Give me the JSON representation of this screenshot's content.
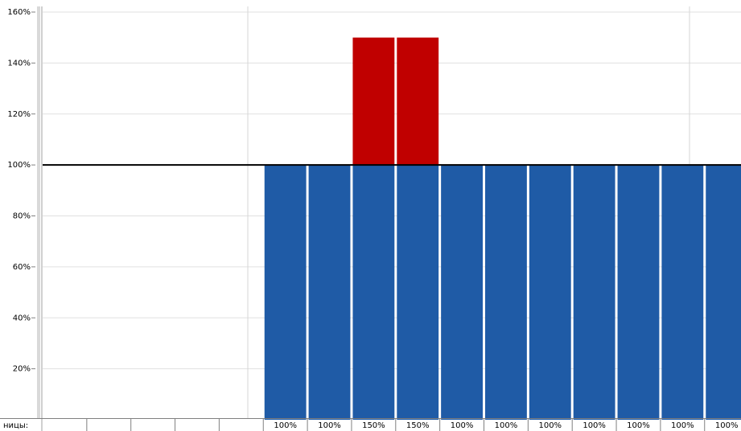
{
  "chart_data": {
    "type": "bar",
    "row_label": "ницы:",
    "categories": [
      null,
      null,
      null,
      null,
      null,
      null,
      null,
      null,
      null,
      null,
      null,
      null,
      null,
      null,
      null,
      null
    ],
    "values": [
      null,
      null,
      null,
      null,
      null,
      100,
      100,
      150,
      150,
      100,
      100,
      100,
      100,
      100,
      100,
      100
    ],
    "value_labels": [
      null,
      null,
      null,
      null,
      null,
      "100%",
      "100%",
      "150%",
      "150%",
      "100%",
      "100%",
      "100%",
      "100%",
      "100%",
      "100%",
      "100%"
    ],
    "color": "#1f5ba6",
    "over_color": "#c00000",
    "max_units": 100,
    "ylim": [
      0,
      160
    ],
    "yticks": [
      {
        "value": 20,
        "label": "20%"
      },
      {
        "value": 40,
        "label": "40%"
      },
      {
        "value": 60,
        "label": "60%"
      },
      {
        "value": 80,
        "label": "80%"
      },
      {
        "value": 100,
        "label": "100%"
      },
      {
        "value": 120,
        "label": "120%"
      },
      {
        "value": 140,
        "label": "140%"
      },
      {
        "value": 160,
        "label": "160%"
      }
    ],
    "grid": true
  }
}
